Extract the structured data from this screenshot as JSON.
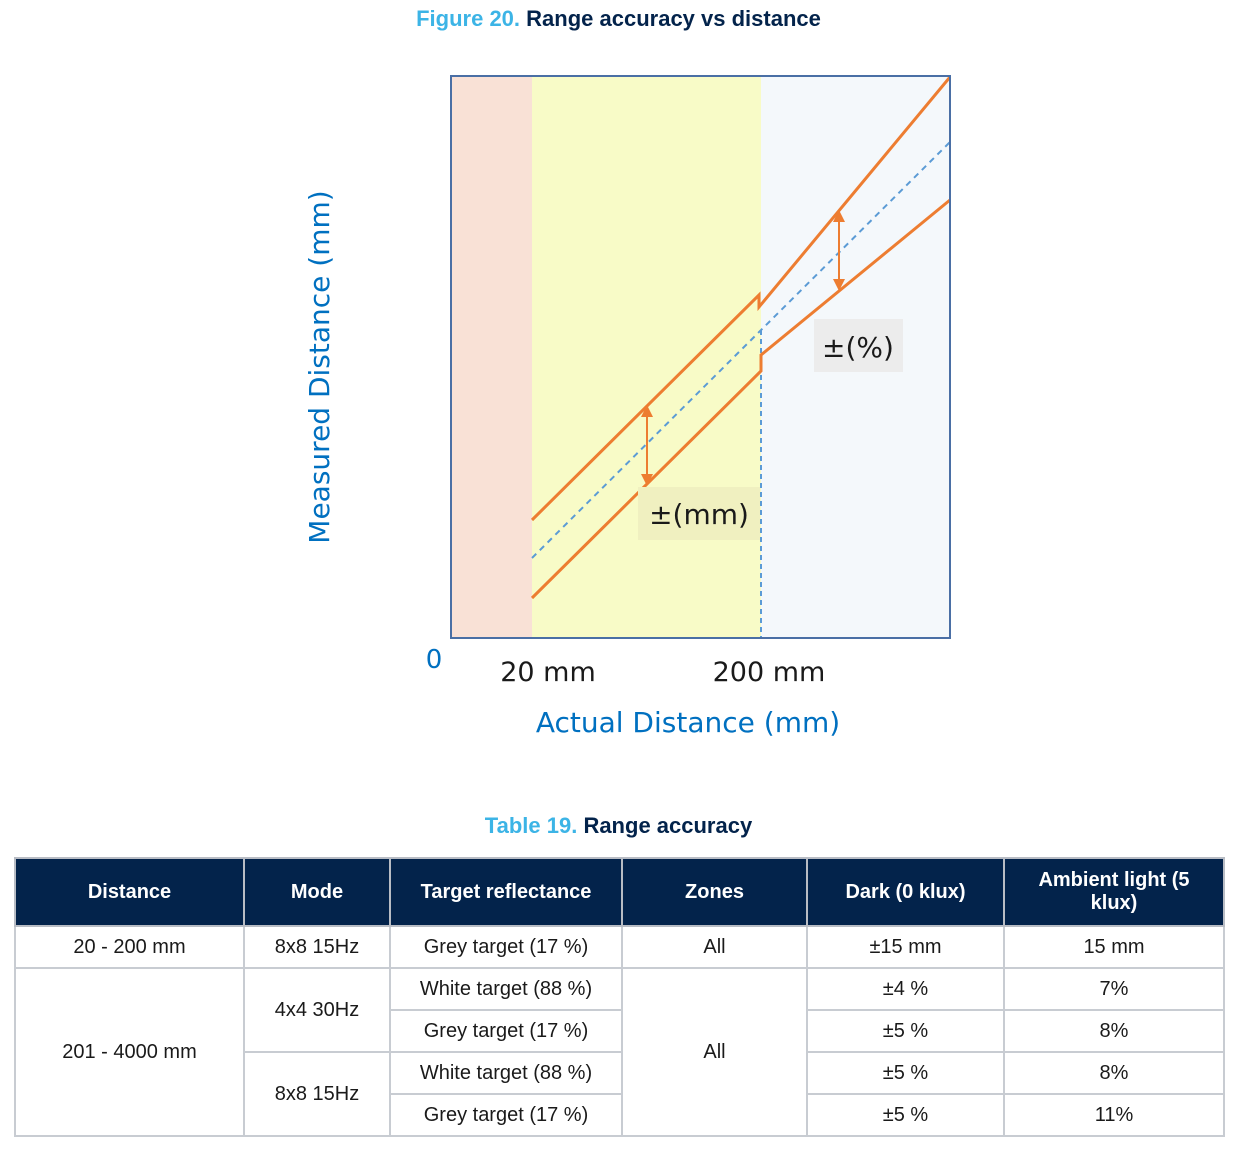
{
  "figure": {
    "number": "Figure 20.",
    "title": "Range accuracy vs distance"
  },
  "chart_data": {
    "type": "line",
    "title": "Range accuracy vs distance",
    "xlabel": "Actual Distance (mm)",
    "ylabel": "Measured Distance (mm)",
    "origin_label": "0",
    "x_ticks": [
      "20 mm",
      "200 mm"
    ],
    "regions": [
      {
        "from": "0",
        "to": "20 mm",
        "color": "#f9e1d6"
      },
      {
        "from": "20 mm",
        "to": "200 mm",
        "color": "#f8fbc7"
      },
      {
        "from": "200 mm",
        "to": "max",
        "color": "#f4f8fb"
      }
    ],
    "annotations": [
      "±(mm)",
      "±(%)"
    ],
    "colors": {
      "bound_lines": "#ed7d31",
      "ideal_line": "#5b9bd5",
      "frame": "#4a6fa5"
    }
  },
  "table": {
    "number": "Table 19.",
    "title": "Range accuracy",
    "headers": [
      "Distance",
      "Mode",
      "Target reflectance",
      "Zones",
      "Dark (0 klux)",
      "Ambient light (5 klux)"
    ],
    "rows": [
      {
        "distance": "20 - 200 mm",
        "mode": "8x8 15Hz",
        "target": "Grey target (17 %)",
        "zones": "All",
        "dark": "±15 mm",
        "ambient": "15 mm"
      },
      {
        "distance": "201 - 4000 mm",
        "mode": "4x4 30Hz",
        "target": "White target (88 %)",
        "zones": "All",
        "dark": "±4 %",
        "ambient": "7%"
      },
      {
        "target": "Grey target (17 %)",
        "dark": "±5 %",
        "ambient": "8%"
      },
      {
        "mode": "8x8 15Hz",
        "target": "White target (88 %)",
        "dark": "±5 %",
        "ambient": "8%"
      },
      {
        "target": "Grey target (17 %)",
        "dark": "±5 %",
        "ambient": "11%"
      }
    ]
  }
}
